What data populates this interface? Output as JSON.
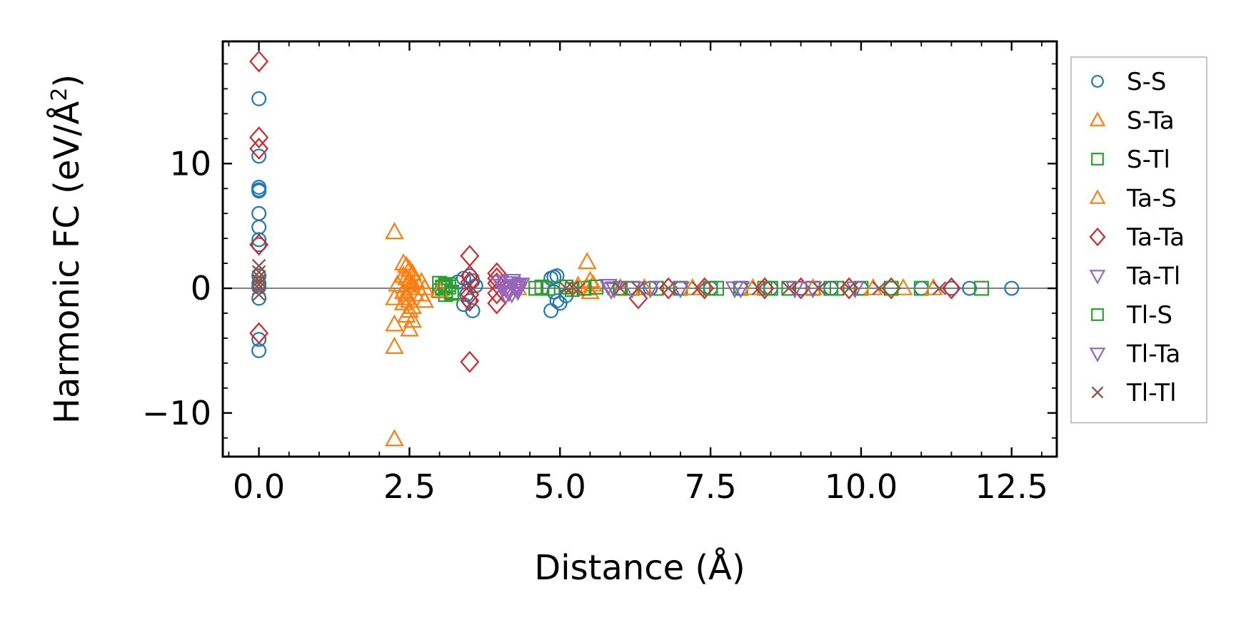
{
  "chart_data": {
    "type": "scatter",
    "title": "",
    "xlabel": "Distance (Å)",
    "ylabel": "Harmonic FC (eV/Å²)",
    "ylabel_parts": {
      "main": "Harmonic FC (eV/Å",
      "sup": "2",
      "close": ")"
    },
    "xlim": [
      -0.6,
      13.25
    ],
    "ylim": [
      -13.5,
      19.8
    ],
    "xticks": [
      0.0,
      2.5,
      5.0,
      7.5,
      10.0,
      12.5
    ],
    "xtick_labels": [
      "0.0",
      "2.5",
      "5.0",
      "7.5",
      "10.0",
      "12.5"
    ],
    "yticks": [
      -10,
      0,
      10
    ],
    "ytick_labels": [
      "−10",
      "0",
      "10"
    ],
    "zero_line": true,
    "legend_position": "outside-right",
    "colors": {
      "blue": "#1f77b4",
      "orange": "#ff7f0e",
      "green": "#2ca02c",
      "red": "#d62728",
      "purple": "#9467bd",
      "brown": "#8c564b",
      "zero_line": "#808080"
    },
    "series": [
      {
        "name": "S-S",
        "marker": "circle",
        "color": "#1f77b4",
        "x": [
          0,
          0,
          0,
          0,
          0,
          0,
          0,
          0,
          0,
          0,
          0,
          0,
          0,
          0,
          0,
          3.3,
          3.4,
          3.5,
          3.55,
          3.6,
          3.45,
          3.5,
          3.4,
          3.55,
          4.85,
          4.9,
          4.95,
          4.95,
          4.85,
          4.9,
          5.0,
          5.1,
          6.0,
          6.5,
          7.0,
          7.5,
          8.0,
          8.5,
          9.0,
          9.5,
          10.0,
          10.5,
          11.0,
          11.5,
          11.8,
          12.5
        ],
        "y": [
          15.2,
          10.6,
          8.1,
          7.8,
          7.9,
          6.0,
          4.9,
          3.9,
          3.5,
          1.0,
          0.1,
          -0.8,
          -4.1,
          -5.0,
          0.4,
          0.5,
          0.8,
          1.0,
          0.6,
          0.2,
          -0.5,
          -1.0,
          -1.3,
          -1.8,
          0.8,
          0.9,
          1.0,
          -1.0,
          -1.8,
          -0.3,
          -1.2,
          -0.6,
          0,
          0,
          0,
          0,
          0,
          0,
          0,
          0,
          0,
          0,
          0,
          0,
          0,
          0
        ]
      },
      {
        "name": "S-Ta",
        "marker": "triangle-up",
        "color": "#ff7f0e",
        "x": [
          2.25,
          2.25,
          2.25,
          2.25,
          2.25,
          2.4,
          2.45,
          2.5,
          2.55,
          2.4,
          2.45,
          2.5,
          2.55,
          2.45,
          2.5,
          2.4,
          2.6,
          2.45,
          2.5,
          2.4,
          2.55,
          2.5,
          2.45,
          2.55,
          2.5,
          2.7,
          2.75,
          2.7,
          2.75,
          5.45,
          5.45,
          5.5,
          5.55,
          5.5,
          6.0,
          10.7
        ],
        "y": [
          4.5,
          -0.8,
          -2.9,
          -4.7,
          -12.1,
          2.0,
          1.8,
          1.5,
          1.2,
          1.0,
          0.8,
          0.6,
          0.4,
          0.2,
          0.0,
          -0.3,
          -0.5,
          -0.8,
          -1.0,
          -1.2,
          -1.5,
          -1.8,
          -2.2,
          -2.6,
          -3.3,
          0.5,
          0.0,
          -0.5,
          -1.0,
          2.1,
          0.0,
          -0.3,
          0.3,
          0.6,
          0.0,
          0.0
        ]
      },
      {
        "name": "S-Tl",
        "marker": "square",
        "color": "#2ca02c",
        "x": [
          3.0,
          3.05,
          3.1,
          3.15,
          3.2,
          3.0,
          3.05,
          3.1,
          3.15,
          3.1,
          4.6,
          4.7,
          5.2,
          5.4,
          5.6,
          6.2,
          6.6,
          7.0,
          7.6,
          8.0,
          8.4,
          8.8,
          9.2,
          9.6,
          10.0,
          11.0,
          12.0
        ],
        "y": [
          0.4,
          0.1,
          -0.2,
          0.3,
          -0.4,
          -0.2,
          0.0,
          -0.5,
          0.1,
          0.2,
          0.0,
          0.1,
          -0.1,
          0.0,
          0.1,
          0.0,
          0.0,
          0.0,
          0.0,
          0.0,
          0.0,
          0.0,
          0.0,
          0.0,
          0.0,
          0.0,
          0.0
        ]
      },
      {
        "name": "Ta-S",
        "marker": "triangle-up",
        "color": "#ff7f0e",
        "x": [
          2.3,
          2.45,
          2.6,
          3.0,
          4.3,
          5.3,
          6.4,
          7.2,
          8.2,
          9.2,
          10.2,
          11.2
        ],
        "y": [
          0.3,
          -0.5,
          0.6,
          -0.2,
          0.0,
          0.2,
          0.0,
          0.0,
          0.0,
          0.0,
          0.0,
          0.0
        ]
      },
      {
        "name": "Ta-Ta",
        "marker": "diamond",
        "color": "#d62728",
        "x": [
          0,
          0,
          0,
          0,
          0,
          3.5,
          3.5,
          3.5,
          3.5,
          3.5,
          3.5,
          3.95,
          3.95,
          3.95,
          3.95,
          3.95,
          6.3,
          6.8,
          7.4,
          8.4,
          9.0,
          9.8,
          10.5,
          11.5
        ],
        "y": [
          18.2,
          12.1,
          11.2,
          3.5,
          -3.6,
          2.6,
          1.0,
          0.5,
          -0.5,
          -1.0,
          -5.9,
          1.2,
          0.8,
          0.4,
          -0.4,
          -1.2,
          -0.8,
          0.0,
          0.0,
          0.0,
          0.0,
          0.0,
          0.0,
          0.0
        ]
      },
      {
        "name": "Ta-Tl",
        "marker": "triangle-down",
        "color": "#9467bd",
        "x": [
          4.0,
          4.05,
          4.1,
          4.15,
          4.2,
          4.25,
          4.3,
          4.35,
          4.1,
          4.2,
          4.3,
          5.8,
          5.85,
          5.9,
          6.5,
          7.9,
          8.9,
          9.9
        ],
        "y": [
          0.5,
          0.2,
          0.0,
          -0.3,
          0.4,
          0.1,
          -0.2,
          0.3,
          -0.5,
          0.6,
          0.0,
          0.2,
          -0.1,
          0.0,
          0.0,
          0.0,
          0.0,
          0.0
        ]
      },
      {
        "name": "Tl-S",
        "marker": "square",
        "color": "#2ca02c",
        "x": [
          3.1,
          3.2,
          4.8,
          5.1,
          6.0,
          7.5,
          8.5,
          9.5,
          10.5
        ],
        "y": [
          0.3,
          -0.3,
          0.0,
          0.1,
          0.0,
          0.0,
          0.0,
          0.0,
          0.0
        ]
      },
      {
        "name": "Tl-Ta",
        "marker": "triangle-down",
        "color": "#9467bd",
        "x": [
          4.1,
          4.2,
          4.3,
          5.9,
          6.2,
          7.0,
          8.0,
          9.2
        ],
        "y": [
          0.4,
          -0.4,
          0.2,
          0.0,
          0.0,
          0.0,
          0.0,
          0.0
        ]
      },
      {
        "name": "Tl-Tl",
        "marker": "x",
        "color": "#8c564b",
        "x": [
          0,
          0,
          0,
          0,
          0,
          0,
          0,
          5.1,
          5.2,
          5.3,
          6.0,
          6.3,
          6.8,
          7.3,
          8.3,
          8.8,
          9.3,
          9.8,
          10.3,
          11.3
        ],
        "y": [
          1.8,
          1.3,
          0.9,
          0.6,
          0.3,
          0.0,
          -0.5,
          0.0,
          0.1,
          -0.1,
          0.0,
          0.0,
          0.0,
          0.0,
          0.0,
          0.0,
          0.0,
          0.0,
          0.0,
          0.0
        ]
      }
    ]
  }
}
